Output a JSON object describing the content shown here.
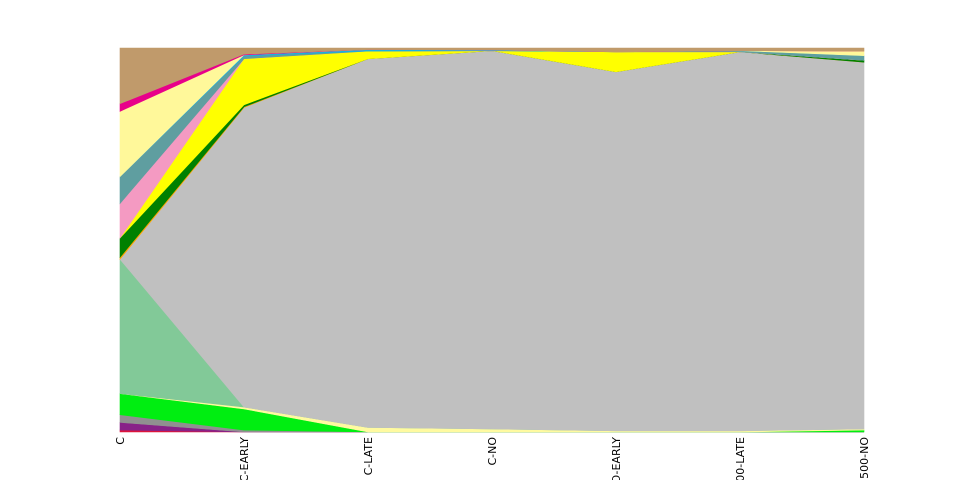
{
  "chart_data": {
    "type": "area",
    "stacked": true,
    "normalized": true,
    "grid": false,
    "legend": "none",
    "categories": [
      "C",
      "C-EARLY",
      "C-LATE",
      "C-NO",
      "O-EARLY",
      "00-LATE",
      "500-NO"
    ],
    "ylim": [
      0,
      1
    ],
    "series": [
      {
        "color": "#dc143c",
        "values": [
          0.005,
          0.0,
          0.0,
          0.0,
          0.0,
          0.0,
          0.0
        ]
      },
      {
        "color": "#882288",
        "values": [
          0.02,
          0.0,
          0.0,
          0.0,
          0.0,
          0.0,
          0.0
        ]
      },
      {
        "color": "#909090",
        "values": [
          0.02,
          0.005,
          0.0,
          0.0,
          0.0,
          0.0,
          0.0
        ]
      },
      {
        "color": "#00ee11",
        "values": [
          0.055,
          0.055,
          0.0,
          0.0,
          0.0,
          0.0,
          0.005
        ]
      },
      {
        "color": "#fffaa0",
        "values": [
          0.0,
          0.005,
          0.012,
          0.008,
          0.003,
          0.003,
          0.003
        ]
      },
      {
        "color": "#82c998",
        "values": [
          0.35,
          0.0,
          0.0,
          0.0,
          0.0,
          0.0,
          0.0
        ]
      },
      {
        "color": "#c0c0c0",
        "values": [
          0.0,
          0.78,
          0.96,
          0.985,
          0.935,
          0.99,
          0.955
        ]
      },
      {
        "color": "#ffa500",
        "values": [
          0.005,
          0.002,
          0.0,
          0.0,
          0.0,
          0.0,
          0.0
        ]
      },
      {
        "color": "#008000",
        "values": [
          0.05,
          0.005,
          0.0,
          0.0,
          0.0,
          0.0,
          0.005
        ]
      },
      {
        "color": "#ffff00",
        "values": [
          0.0,
          0.12,
          0.02,
          0.0,
          0.052,
          0.0,
          0.0
        ]
      },
      {
        "color": "#f49ac2",
        "values": [
          0.09,
          0.0,
          0.0,
          0.0,
          0.0,
          0.0,
          0.0
        ]
      },
      {
        "color": "#5f9ea0",
        "values": [
          0.07,
          0.007,
          0.0,
          0.0,
          0.0,
          0.003,
          0.012
        ]
      },
      {
        "color": "#1ab0e0",
        "values": [
          0.0,
          0.003,
          0.004,
          0.002,
          0.0,
          0.0,
          0.0
        ]
      },
      {
        "color": "#fff89a",
        "values": [
          0.17,
          0.0,
          0.0,
          0.0,
          0.0,
          0.0,
          0.012
        ]
      },
      {
        "color": "#e8008a",
        "values": [
          0.02,
          0.002,
          0.0,
          0.0,
          0.0,
          0.0,
          0.0
        ]
      },
      {
        "color": "#c09a6b",
        "values": [
          0.145,
          0.016,
          0.004,
          0.005,
          0.01,
          0.007,
          0.008
        ]
      }
    ]
  }
}
